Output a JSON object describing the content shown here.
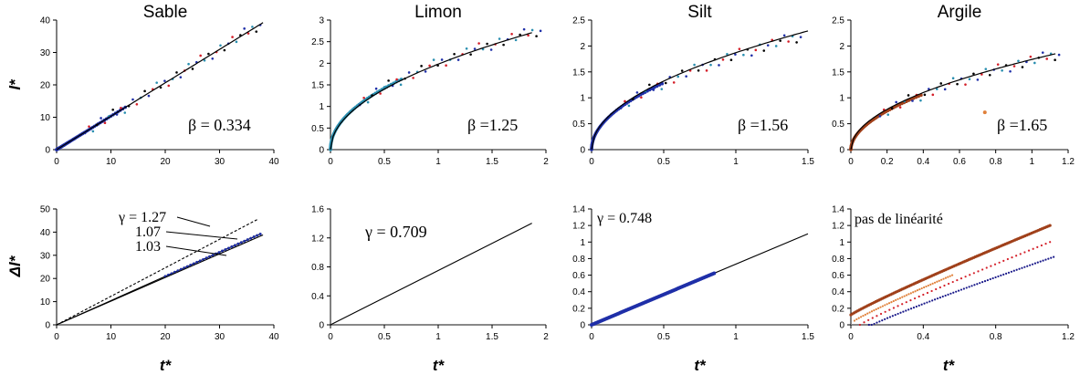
{
  "colors": {
    "black": "#000000",
    "blue": "#1f2fa8",
    "teal": "#2a8fb0",
    "red": "#d4202a",
    "orange": "#e0803a",
    "brown": "#a0401a",
    "navy": "#1a1a8a",
    "grid": "#000000"
  },
  "row_labels": {
    "top": "l*",
    "bottom": "Δl*"
  },
  "x_label": "t*",
  "chart_data": [
    {
      "id": "sable-top",
      "type": "scatter",
      "title": "Sable",
      "xlim": [
        0,
        40
      ],
      "ylim": [
        0,
        40
      ],
      "xticks": [
        0,
        10,
        20,
        30,
        40
      ],
      "xtick_labels": [
        "0",
        "10",
        "20",
        "30",
        "40"
      ],
      "yticks": [
        0,
        10,
        20,
        30,
        40
      ],
      "ytick_labels": [
        "0",
        "10",
        "20",
        "30",
        "40"
      ],
      "annotation": "β = 0.334",
      "fit": {
        "kind": "linear",
        "x_end": 38,
        "y_end": 39.2
      },
      "scatter": {
        "kind": "linear",
        "x_end": 37.5,
        "y_end": 38.8
      }
    },
    {
      "id": "limon-top",
      "type": "scatter",
      "title": "Limon",
      "xlim": [
        0,
        2
      ],
      "ylim": [
        0,
        3
      ],
      "xticks": [
        0,
        0.5,
        1,
        1.5,
        2
      ],
      "xtick_labels": [
        "0",
        "0.5",
        "1",
        "1.5",
        "2"
      ],
      "yticks": [
        0,
        0.5,
        1,
        1.5,
        2,
        2.5,
        3
      ],
      "ytick_labels": [
        "0",
        "0.5",
        "1",
        "1.5",
        "2",
        "2.5",
        "3"
      ],
      "annotation": "β =1.25",
      "fit": {
        "kind": "power",
        "a": 1.98,
        "b": 0.5,
        "x_end": 1.87
      },
      "scatter": {
        "kind": "power",
        "a": 2.0,
        "b": 0.49,
        "x_end": 1.95
      }
    },
    {
      "id": "silt-top",
      "type": "scatter",
      "title": "Silt",
      "xlim": [
        0,
        1.5
      ],
      "ylim": [
        0,
        2.5
      ],
      "xticks": [
        0,
        0.5,
        1,
        1.5
      ],
      "xtick_labels": [
        "0",
        "0.5",
        "1",
        "1.5"
      ],
      "yticks": [
        0,
        0.5,
        1,
        1.5,
        2,
        2.5
      ],
      "ytick_labels": [
        "0",
        "0.5",
        "1",
        "1.5",
        "2",
        "2.5"
      ],
      "annotation": "β =1.56",
      "fit": {
        "kind": "power",
        "a": 1.87,
        "b": 0.5,
        "x_end": 1.5
      },
      "scatter": {
        "kind": "power",
        "a": 1.82,
        "b": 0.5,
        "x_end": 1.45
      }
    },
    {
      "id": "argile-top",
      "type": "scatter",
      "title": "Argile",
      "xlim": [
        0,
        1.2
      ],
      "ylim": [
        0,
        2.5
      ],
      "xticks": [
        0,
        0.2,
        0.4,
        0.6,
        0.8,
        1,
        1.2
      ],
      "xtick_labels": [
        "0",
        "0.2",
        "0.4",
        "0.6",
        "0.8",
        "1",
        "1.2"
      ],
      "yticks": [
        0,
        0.5,
        1,
        1.5,
        2,
        2.5
      ],
      "ytick_labels": [
        "0",
        "0.5",
        "1",
        "1.5",
        "2",
        "2.5"
      ],
      "annotation": "β =1.65",
      "fit": {
        "kind": "power",
        "a": 1.74,
        "b": 0.5,
        "x_end": 1.13
      },
      "scatter": {
        "kind": "power",
        "a": 1.72,
        "b": 0.52,
        "x_end": 1.15
      },
      "outlier": {
        "x": 0.74,
        "y": 0.72
      }
    },
    {
      "id": "sable-bottom",
      "type": "line",
      "xlim": [
        0,
        40
      ],
      "ylim": [
        0,
        50
      ],
      "xticks": [
        0,
        10,
        20,
        30,
        40
      ],
      "xtick_labels": [
        "0",
        "10",
        "20",
        "30",
        "40"
      ],
      "yticks": [
        0,
        10,
        20,
        30,
        40,
        50
      ],
      "ytick_labels": [
        "0",
        "10",
        "20",
        "30",
        "40",
        "50"
      ],
      "annotations": [
        "γ = 1.27",
        "1.07",
        "1.03"
      ],
      "series": [
        {
          "slope": 1.23,
          "x_end": 37
        },
        {
          "slope": 1.045,
          "x_end": 37.5
        },
        {
          "slope": 1.02,
          "x_end": 38
        }
      ]
    },
    {
      "id": "limon-bottom",
      "type": "line",
      "xlim": [
        0,
        2
      ],
      "ylim": [
        0,
        1.6
      ],
      "xticks": [
        0,
        0.5,
        1,
        1.5,
        2
      ],
      "xtick_labels": [
        "0",
        "0.5",
        "1",
        "1.5",
        "2"
      ],
      "yticks": [
        0,
        0.4,
        0.8,
        1.2,
        1.6
      ],
      "ytick_labels": [
        "0",
        "0.4",
        "0.8",
        "1.2",
        "1.6"
      ],
      "annotation": "γ = 0.709",
      "series": [
        {
          "slope": 0.75,
          "x_end": 1.87
        }
      ]
    },
    {
      "id": "silt-bottom",
      "type": "line",
      "xlim": [
        0,
        1.5
      ],
      "ylim": [
        0,
        1.4
      ],
      "xticks": [
        0,
        0.5,
        1,
        1.5
      ],
      "xtick_labels": [
        "0",
        "0.5",
        "1",
        "1.5"
      ],
      "yticks": [
        0,
        0.2,
        0.4,
        0.6,
        0.8,
        1,
        1.2,
        1.4
      ],
      "ytick_labels": [
        "0",
        "0.2",
        "0.4",
        "0.6",
        "0.8",
        "1",
        "1.2",
        "1.4"
      ],
      "annotation": "γ = 0.748",
      "series": [
        {
          "slope": 0.733,
          "x_end": 1.5
        }
      ]
    },
    {
      "id": "argile-bottom",
      "type": "scatter",
      "xlim": [
        0,
        1.2
      ],
      "ylim": [
        0,
        1.4
      ],
      "xticks": [
        0,
        0.4,
        0.8,
        1.2
      ],
      "xtick_labels": [
        "0",
        "0.4",
        "0.8",
        "1.2"
      ],
      "yticks": [
        0,
        0.2,
        0.4,
        0.6,
        0.8,
        1,
        1.2,
        1.4
      ],
      "ytick_labels": [
        "0",
        "0.2",
        "0.4",
        "0.6",
        "0.8",
        "1",
        "1.2",
        "1.4"
      ],
      "annotation": "pas de linéarité",
      "series": [
        {
          "color": "brown",
          "x0": 0,
          "y0": 0.12,
          "x1": 1.1,
          "y1": 1.2
        },
        {
          "color": "orange",
          "x0": 0.02,
          "y0": 0.05,
          "x1": 0.56,
          "y1": 0.6
        },
        {
          "color": "red",
          "x0": 0.05,
          "y0": 0.0,
          "x1": 1.1,
          "y1": 1.0
        },
        {
          "color": "navy",
          "x0": 0.1,
          "y0": -0.02,
          "x1": 1.12,
          "y1": 0.82
        }
      ]
    }
  ]
}
